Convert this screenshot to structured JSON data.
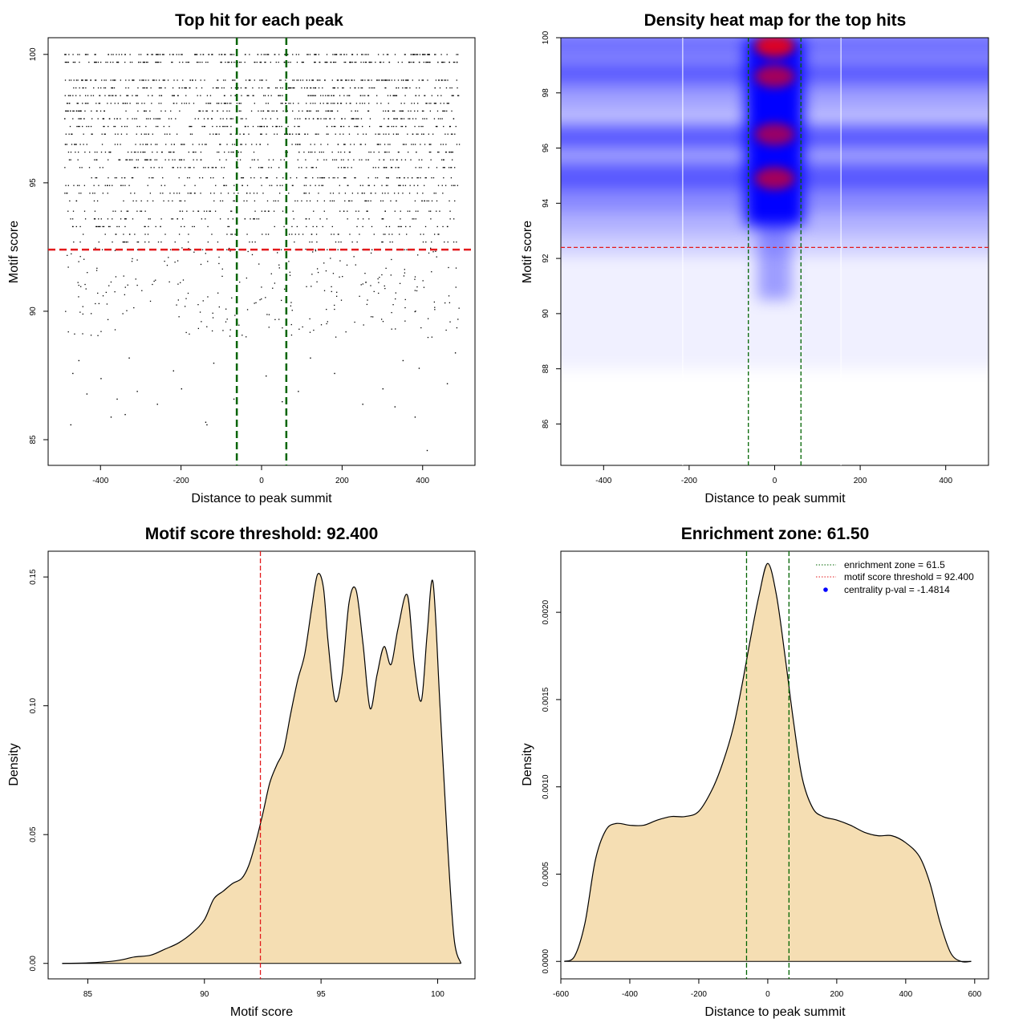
{
  "colors": {
    "threshold_line": "#e31a1c",
    "zone_line": "#006400",
    "density_fill": "#f5deb3",
    "heat_low": "#ffffff",
    "heat_mid": "#0000ff",
    "heat_high": "#ff0000",
    "pval_point": "#0000ff"
  },
  "chart_data": [
    {
      "id": "scatter",
      "type": "scatter",
      "title": "Top hit for each peak",
      "xlabel": "Distance to peak summit",
      "ylabel": "Motif score",
      "xlim": [
        -530,
        530
      ],
      "ylim": [
        84,
        100.65
      ],
      "xticks": [
        -400,
        -200,
        0,
        200,
        400
      ],
      "xtick_labels": [
        "-400",
        "-200",
        "0",
        "200",
        "400"
      ],
      "yticks": [
        85,
        90,
        95,
        100
      ],
      "ytick_labels": [
        "85",
        "90",
        "95",
        "100"
      ],
      "vlines": [
        -61.5,
        61.5
      ],
      "hline": 92.4,
      "x_range": [
        -490,
        490
      ],
      "score_levels": [
        100.0,
        99.7,
        99.0,
        98.7,
        98.4,
        98.1,
        97.8,
        97.5,
        97.2,
        96.9,
        96.5,
        96.2,
        95.9,
        95.6,
        95.2,
        94.9,
        94.6,
        94.3,
        93.9,
        93.6,
        93.3,
        93.0,
        92.7,
        92.4
      ],
      "sparse_points": [
        {
          "x": -475,
          "y": 85.6
        },
        {
          "x": -140,
          "y": 85.7
        },
        {
          "x": -137,
          "y": 85.6
        },
        {
          "x": -375,
          "y": 85.9
        },
        {
          "x": -340,
          "y": 86.0
        },
        {
          "x": 380,
          "y": 85.9
        },
        {
          "x": 410,
          "y": 84.6
        },
        {
          "x": 330,
          "y": 86.3
        },
        {
          "x": -360,
          "y": 86.6
        },
        {
          "x": -260,
          "y": 86.4
        },
        {
          "x": -70,
          "y": 86.6
        },
        {
          "x": 50,
          "y": 86.5
        },
        {
          "x": 250,
          "y": 86.4
        },
        {
          "x": -435,
          "y": 86.8
        },
        {
          "x": -310,
          "y": 86.9
        },
        {
          "x": -200,
          "y": 87.0
        },
        {
          "x": 90,
          "y": 86.9
        },
        {
          "x": 300,
          "y": 87.0
        },
        {
          "x": 460,
          "y": 87.2
        },
        {
          "x": -470,
          "y": 87.6
        },
        {
          "x": -400,
          "y": 87.4
        },
        {
          "x": -220,
          "y": 87.7
        },
        {
          "x": 10,
          "y": 87.5
        },
        {
          "x": 180,
          "y": 87.6
        },
        {
          "x": 390,
          "y": 87.8
        },
        {
          "x": -455,
          "y": 88.1
        },
        {
          "x": -330,
          "y": 88.2
        },
        {
          "x": -120,
          "y": 88.0
        },
        {
          "x": 120,
          "y": 88.2
        },
        {
          "x": 350,
          "y": 88.1
        },
        {
          "x": 480,
          "y": 88.4
        }
      ]
    },
    {
      "id": "heatmap",
      "type": "heatmap",
      "title": "Density heat map for the top hits",
      "xlabel": "Distance to peak summit",
      "ylabel": "Motif score",
      "xlim": [
        -500,
        500
      ],
      "ylim": [
        84.5,
        100.0
      ],
      "xticks": [
        -400,
        -200,
        0,
        200,
        400
      ],
      "xtick_labels": [
        "-400",
        "-200",
        "0",
        "200",
        "400"
      ],
      "yticks": [
        86,
        88,
        90,
        92,
        94,
        96,
        98,
        100
      ],
      "ytick_labels": [
        "86",
        "88",
        "90",
        "92",
        "94",
        "96",
        "98",
        "100"
      ],
      "vlines": [
        -61.5,
        61.5
      ],
      "white_lines": [
        -215,
        155
      ],
      "hline": 92.4,
      "hotspots": [
        {
          "x": 0,
          "y": 99.7,
          "intensity": 1.0
        },
        {
          "x": 0,
          "y": 98.6,
          "intensity": 0.75
        },
        {
          "x": 0,
          "y": 96.5,
          "intensity": 0.7
        },
        {
          "x": 0,
          "y": 94.9,
          "intensity": 0.75
        }
      ]
    },
    {
      "id": "score_density",
      "type": "area",
      "title": "Motif score threshold: 92.400",
      "xlabel": "Motif score",
      "ylabel": "Density",
      "xlim": [
        83.3,
        101.6
      ],
      "ylim": [
        -0.006,
        0.16
      ],
      "xticks": [
        85,
        90,
        95,
        100
      ],
      "xtick_labels": [
        "85",
        "90",
        "95",
        "100"
      ],
      "yticks": [
        0.0,
        0.05,
        0.1,
        0.15
      ],
      "ytick_labels": [
        "0.00",
        "0.05",
        "0.10",
        "0.15"
      ],
      "vline": 92.4,
      "x": [
        83.9,
        85.0,
        86.0,
        86.5,
        87.0,
        87.7,
        88.3,
        88.9,
        89.5,
        90.0,
        90.4,
        90.8,
        91.2,
        91.6,
        91.9,
        92.2,
        92.5,
        92.8,
        93.1,
        93.4,
        93.7,
        94.0,
        94.3,
        94.6,
        94.85,
        95.1,
        95.3,
        95.6,
        95.9,
        96.2,
        96.5,
        96.8,
        97.1,
        97.4,
        97.7,
        98.0,
        98.3,
        98.7,
        99.0,
        99.3,
        99.55,
        99.8,
        100.1,
        100.4,
        100.7,
        101.0
      ],
      "y": [
        0.0,
        0.0002,
        0.0008,
        0.0015,
        0.0025,
        0.0032,
        0.0055,
        0.008,
        0.012,
        0.017,
        0.025,
        0.028,
        0.031,
        0.033,
        0.038,
        0.047,
        0.058,
        0.07,
        0.077,
        0.083,
        0.097,
        0.11,
        0.12,
        0.138,
        0.151,
        0.146,
        0.125,
        0.102,
        0.112,
        0.14,
        0.145,
        0.124,
        0.099,
        0.112,
        0.123,
        0.116,
        0.13,
        0.143,
        0.116,
        0.102,
        0.128,
        0.148,
        0.1,
        0.05,
        0.01,
        0.0
      ]
    },
    {
      "id": "distance_density",
      "type": "area",
      "title": "Enrichment zone: 61.50",
      "xlabel": "Distance to peak summit",
      "ylabel": "Density",
      "xlim": [
        -600,
        640
      ],
      "ylim": [
        -0.0001,
        0.00235
      ],
      "xticks": [
        -600,
        -400,
        -200,
        0,
        200,
        400,
        600
      ],
      "xtick_labels": [
        "-600",
        "-400",
        "-200",
        "0",
        "200",
        "400",
        "600"
      ],
      "yticks": [
        0.0,
        0.0005,
        0.001,
        0.0015,
        0.002
      ],
      "ytick_labels": [
        "0.0000",
        "0.0005",
        "0.0010",
        "0.0015",
        "0.0020"
      ],
      "vlines": [
        -61.5,
        61.5
      ],
      "x": [
        -590,
        -560,
        -530,
        -500,
        -470,
        -440,
        -400,
        -360,
        -320,
        -280,
        -240,
        -200,
        -160,
        -130,
        -100,
        -75,
        -50,
        -25,
        0,
        25,
        50,
        75,
        100,
        130,
        160,
        200,
        240,
        280,
        320,
        360,
        400,
        440,
        470,
        500,
        530,
        560,
        590
      ],
      "y": [
        0.0,
        3e-05,
        0.00022,
        0.00058,
        0.00075,
        0.00079,
        0.00078,
        0.00078,
        0.00081,
        0.00083,
        0.00083,
        0.00086,
        0.00099,
        0.00114,
        0.00134,
        0.00158,
        0.00185,
        0.0021,
        0.00228,
        0.0021,
        0.00175,
        0.00137,
        0.00105,
        0.00088,
        0.00083,
        0.00081,
        0.00078,
        0.00074,
        0.00072,
        0.00072,
        0.00068,
        0.0006,
        0.00045,
        0.00022,
        5e-05,
        0.0,
        0.0
      ],
      "legend": {
        "position": "top-right",
        "entries": [
          {
            "label": "enrichment zone = 61.5",
            "style": "dotted",
            "color": "#006400"
          },
          {
            "label": "motif score threshold = 92.400",
            "style": "dotted",
            "color": "#e31a1c"
          },
          {
            "label": "centrality p-val = -1.4814",
            "style": "point",
            "color": "#0000ff"
          }
        ]
      }
    }
  ]
}
